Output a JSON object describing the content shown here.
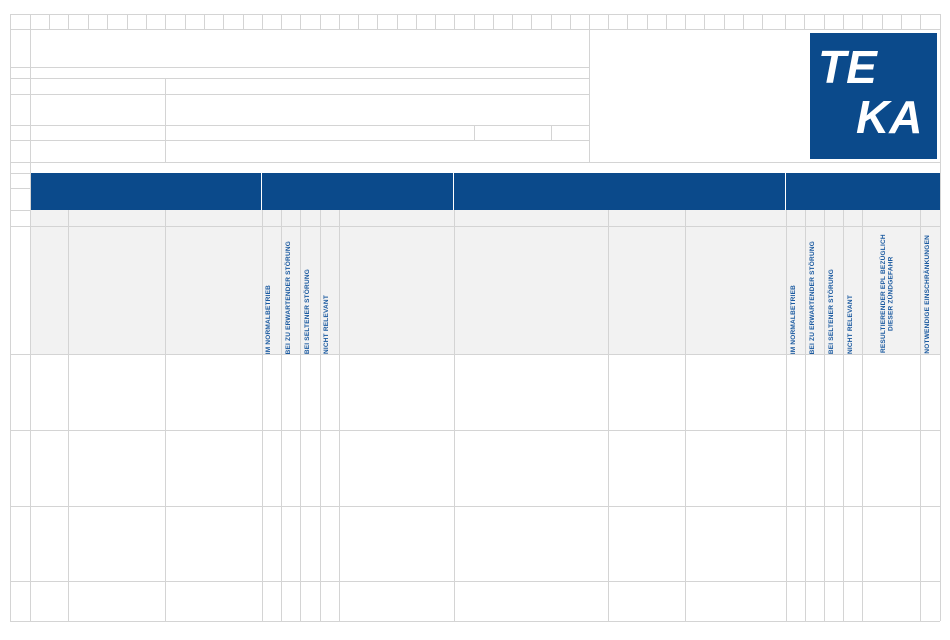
{
  "colors": {
    "brand": "#0b4a8b",
    "label": "#1b5aa0",
    "grid": "#d4d4d4"
  },
  "logo": {
    "text": "TEKA",
    "line1": "TE",
    "line2": "KA",
    "icon": "teka-logo"
  },
  "columns_left": {
    "im_normalbetrieb": "IM NORMALBETRIEB",
    "bei_zu_erwartender_stoerung": "BEI ZU ERWARTENDER STÖRUNG",
    "bei_seltener_stoerung": "BEI SELTENER STÖRUNG",
    "nicht_relevant": "NICHT RELEVANT"
  },
  "columns_right": {
    "im_normalbetrieb": "IM NORMALBETRIEB",
    "bei_zu_erwartender_stoerung": "BEI ZU ERWARTENDER STÖRUNG",
    "bei_seltener_stoerung": "BEI SELTENER STÖRUNG",
    "nicht_relevant": "NICHT RELEVANT",
    "resultierender_epl": "RESULTIERENDER EPL BEZÜGLICH DIESER ZÜNDGEFAHR",
    "notwendige_einschraenkungen": "NOTWENDIGE EINSCHRÄNKUNGEN"
  }
}
